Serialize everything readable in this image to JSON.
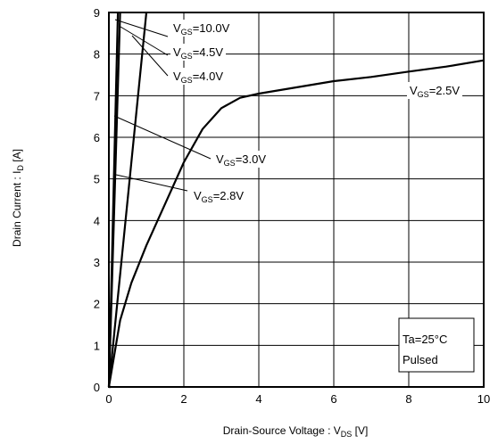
{
  "chart_data": {
    "type": "line",
    "xlabel": {
      "prefix": "Drain-Source Voltage : V",
      "sub": "DS",
      "suffix": " [V]"
    },
    "ylabel": {
      "prefix": "Drain Current : I",
      "sub": "D",
      "suffix": " [A]"
    },
    "xlim": [
      0,
      10
    ],
    "ylim": [
      0,
      9
    ],
    "xticks": [
      0,
      2,
      4,
      6,
      8,
      10
    ],
    "yticks": [
      0,
      1,
      2,
      3,
      4,
      5,
      6,
      7,
      8,
      9
    ],
    "grid": true,
    "series": [
      {
        "name": "V_GS=10.0V",
        "x": [
          0,
          0.08,
          0.16,
          0.24
        ],
        "y": [
          0,
          3,
          6,
          9
        ]
      },
      {
        "name": "V_GS=4.5V",
        "x": [
          0,
          0.1,
          0.2,
          0.3
        ],
        "y": [
          0,
          3,
          6,
          9
        ]
      },
      {
        "name": "V_GS=4.0V",
        "x": [
          0,
          0.2,
          0.4,
          0.6,
          0.8,
          1.0
        ],
        "y": [
          0,
          1.8,
          3.6,
          5.4,
          7.2,
          9
        ]
      },
      {
        "name": "V_GS=3.0V",
        "x": [
          0,
          0.3,
          0.6,
          1.0,
          1.5,
          2.0,
          2.5,
          3.0,
          3.5,
          4.0,
          5.0,
          6.0,
          7.0,
          8.0,
          9.0,
          10.0
        ],
        "y": [
          0,
          1.6,
          2.5,
          3.4,
          4.4,
          5.4,
          6.2,
          6.7,
          6.95,
          7.05,
          7.2,
          7.35,
          7.45,
          7.58,
          7.7,
          7.85
        ]
      },
      {
        "name": "V_GS=2.8V",
        "x": [
          0,
          0.05
        ],
        "y": [
          0,
          0
        ]
      },
      {
        "name": "V_GS=2.5V",
        "x": [
          0,
          0.05
        ],
        "y": [
          0,
          0
        ]
      }
    ],
    "annotations": [
      {
        "id": "vgs10",
        "prefix": "V",
        "sub": "GS",
        "suffix": "=10.0V"
      },
      {
        "id": "vgs45",
        "prefix": "V",
        "sub": "GS",
        "suffix": "=4.5V"
      },
      {
        "id": "vgs40",
        "prefix": "V",
        "sub": "GS",
        "suffix": "=4.0V"
      },
      {
        "id": "vgs25",
        "prefix": "V",
        "sub": "GS",
        "suffix": "=2.5V"
      },
      {
        "id": "vgs30",
        "prefix": "V",
        "sub": "GS",
        "suffix": "=3.0V"
      },
      {
        "id": "vgs28",
        "prefix": "V",
        "sub": "GS",
        "suffix": "=2.8V"
      }
    ],
    "conditions": [
      "Ta=25°C",
      "Pulsed"
    ]
  }
}
